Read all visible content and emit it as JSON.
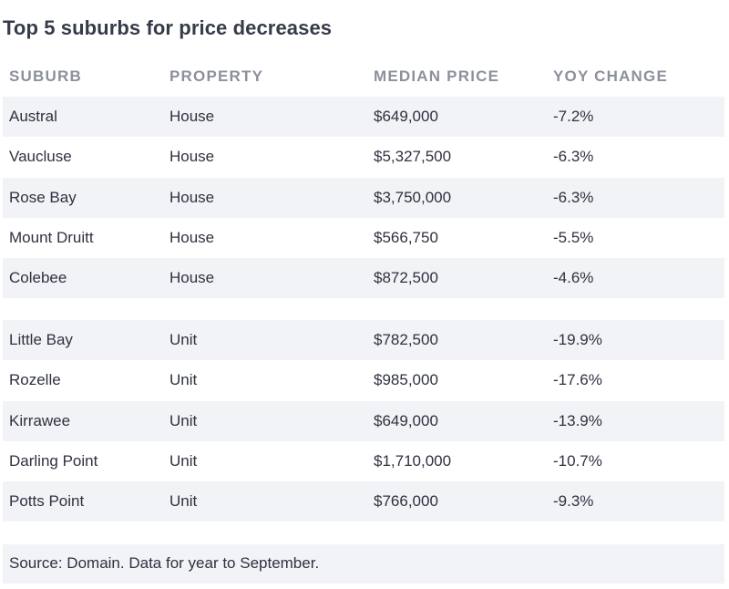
{
  "title": "Top 5 suburbs for price decreases",
  "columns": [
    "SUBURB",
    "PROPERTY",
    "MEDIAN PRICE",
    "YOY CHANGE"
  ],
  "houses": [
    {
      "suburb": "Austral",
      "property": "House",
      "price": "$649,000",
      "change": "-7.2%"
    },
    {
      "suburb": "Vaucluse",
      "property": "House",
      "price": "$5,327,500",
      "change": "-6.3%"
    },
    {
      "suburb": "Rose Bay",
      "property": "House",
      "price": "$3,750,000",
      "change": "-6.3%"
    },
    {
      "suburb": "Mount Druitt",
      "property": "House",
      "price": "$566,750",
      "change": "-5.5%"
    },
    {
      "suburb": "Colebee",
      "property": "House",
      "price": "$872,500",
      "change": "-4.6%"
    }
  ],
  "units": [
    {
      "suburb": "Little Bay",
      "property": "Unit",
      "price": "$782,500",
      "change": "-19.9%"
    },
    {
      "suburb": "Rozelle",
      "property": "Unit",
      "price": "$985,000",
      "change": "-17.6%"
    },
    {
      "suburb": "Kirrawee",
      "property": "Unit",
      "price": "$649,000",
      "change": "-13.9%"
    },
    {
      "suburb": "Darling Point",
      "property": "Unit",
      "price": "$1,710,000",
      "change": "-10.7%"
    },
    {
      "suburb": "Potts Point",
      "property": "Unit",
      "price": "$766,000",
      "change": "-9.3%"
    }
  ],
  "source": "Source: Domain. Data for year to September."
}
